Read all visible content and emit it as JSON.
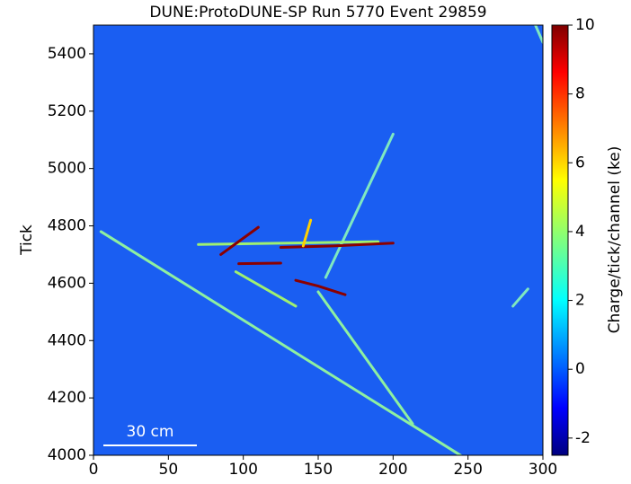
{
  "chart_data": {
    "type": "image",
    "title": "DUNE:ProtoDUNE-SP Run 5770 Event 29859",
    "y_label": "Tick",
    "scale_bar_label": "30 cm",
    "colorbar_label": "Charge/tick/channel (ke)",
    "background_color": "#1a5ef2",
    "xlim": [
      0,
      300
    ],
    "xticks": [
      0,
      50,
      100,
      150,
      200,
      250,
      300
    ],
    "ylim": [
      4000,
      5500
    ],
    "yticks": [
      4000,
      4200,
      4400,
      4600,
      4800,
      5000,
      5200,
      5400
    ],
    "clim": [
      -2.5,
      10
    ],
    "cticks": [
      -2,
      0,
      2,
      4,
      6,
      8,
      10
    ],
    "tracks": [
      {
        "color": "#8ef0a0",
        "x": [
          5,
          245
        ],
        "y": [
          4780,
          4000
        ]
      },
      {
        "color": "#8ef0a0",
        "x": [
          150,
          213
        ],
        "y": [
          4570,
          4110
        ]
      },
      {
        "color": "#7fe8c0",
        "x": [
          155,
          200
        ],
        "y": [
          4620,
          5120
        ]
      },
      {
        "color": "#9ff070",
        "x": [
          70,
          190
        ],
        "y": [
          4735,
          4745
        ]
      },
      {
        "color": "#9ff070",
        "x": [
          95,
          135
        ],
        "y": [
          4640,
          4520
        ]
      },
      {
        "color": "#8b0000",
        "x": [
          85,
          110
        ],
        "y": [
          4700,
          4795
        ]
      },
      {
        "color": "#8b0000",
        "x": [
          97,
          125
        ],
        "y": [
          4668,
          4670
        ]
      },
      {
        "color": "#8b0000",
        "x": [
          125,
          160,
          200
        ],
        "y": [
          4725,
          4730,
          4740
        ]
      },
      {
        "color": "#8b0000",
        "x": [
          135,
          150,
          168
        ],
        "y": [
          4610,
          4590,
          4560
        ]
      },
      {
        "color": "#ffd000",
        "x": [
          140,
          145
        ],
        "y": [
          4730,
          4820
        ]
      },
      {
        "color": "#7fe8c0",
        "x": [
          280,
          290
        ],
        "y": [
          4520,
          4580
        ]
      },
      {
        "color": "#7fe8c0",
        "x": [
          295,
          300
        ],
        "y": [
          5500,
          5440
        ]
      }
    ]
  }
}
